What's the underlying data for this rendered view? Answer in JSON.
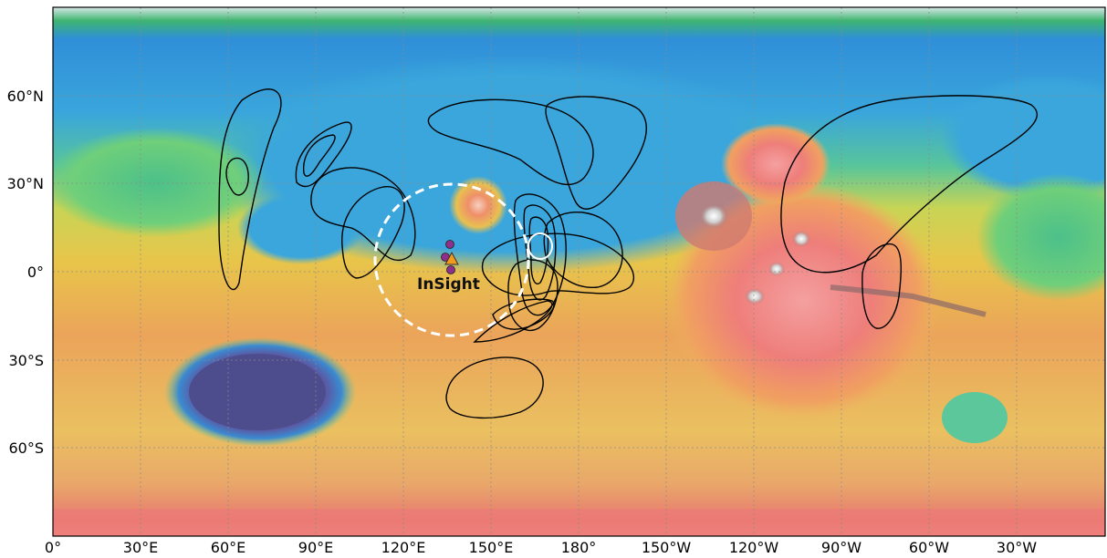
{
  "map": {
    "projection": "equirectangular",
    "x_tick_labels": [
      "0°",
      "30°E",
      "60°E",
      "90°E",
      "120°E",
      "150°E",
      "180°",
      "150°W",
      "120°W",
      "90°W",
      "60°W",
      "30°W"
    ],
    "y_tick_labels": [
      "60°N",
      "30°N",
      "0°",
      "30°S",
      "60°S"
    ],
    "grid": true,
    "colormap": "elevation: blue/purple low, green, yellow, orange, red, white high"
  },
  "site": {
    "label": "InSight",
    "marker": "orange-triangle",
    "color": "#f29a1c",
    "nearby_points_color": "#8e2f8c"
  },
  "colors": {
    "contours": "#000000",
    "dashed_circle": "#ffffff",
    "deep_basin": "#4a4a8a",
    "lowlands": "#3ea3d9",
    "highlands": "#e89a4a"
  }
}
